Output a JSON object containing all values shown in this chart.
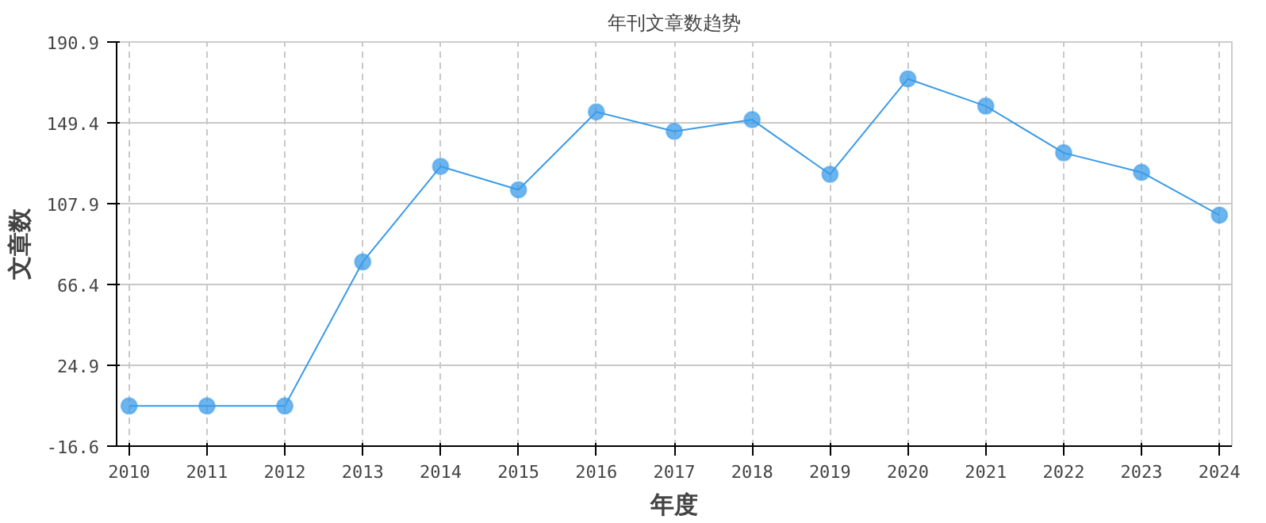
{
  "chart_data": {
    "type": "line",
    "title": "年刊文章数趋势",
    "xlabel": "年度",
    "ylabel": "文章数",
    "categories": [
      "2010",
      "2011",
      "2012",
      "2013",
      "2014",
      "2015",
      "2016",
      "2017",
      "2018",
      "2019",
      "2020",
      "2021",
      "2022",
      "2023",
      "2024"
    ],
    "series": [
      {
        "color": "#3b9be8",
        "values": [
          4,
          4,
          4,
          78,
          127,
          115,
          155,
          145,
          151,
          123,
          172,
          158,
          134,
          124,
          102
        ]
      }
    ],
    "ylim": [
      -16.6,
      190.9
    ],
    "yticks": [
      -16.6,
      24.9,
      66.4,
      107.9,
      149.4,
      190.9
    ],
    "grid": true,
    "marker": "circle",
    "line_style": "solid"
  }
}
